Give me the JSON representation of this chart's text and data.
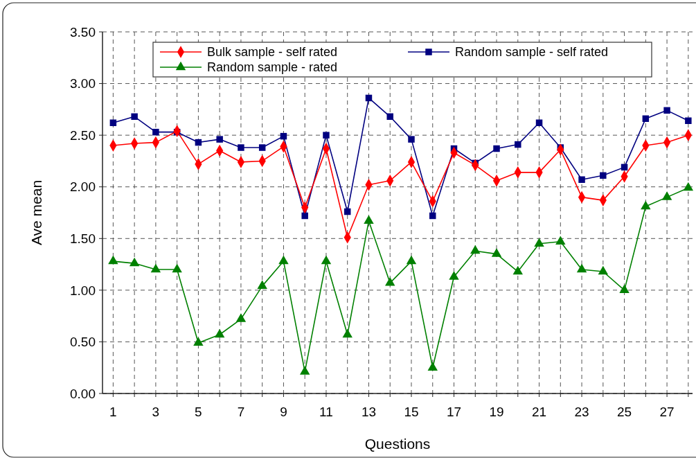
{
  "chart_data": {
    "type": "line",
    "xlabel": "Questions",
    "ylabel": "Ave mean",
    "x": [
      1,
      2,
      3,
      4,
      5,
      6,
      7,
      8,
      9,
      10,
      11,
      12,
      13,
      14,
      15,
      16,
      17,
      18,
      19,
      20,
      21,
      22,
      23,
      24,
      25,
      26,
      27,
      28
    ],
    "xlim": [
      0.5,
      28.2
    ],
    "xticks": [
      1,
      {
        "value": 2,
        "label": null
      },
      3,
      {
        "value": 4,
        "label": null
      },
      5,
      {
        "value": 6,
        "label": null
      },
      7,
      {
        "value": 8,
        "label": null
      },
      9,
      {
        "value": 10,
        "label": null
      },
      11,
      {
        "value": 12,
        "label": null
      },
      13,
      {
        "value": 14,
        "label": null
      },
      15,
      {
        "value": 16,
        "label": null
      },
      17,
      {
        "value": 18,
        "label": null
      },
      19,
      {
        "value": 20,
        "label": null
      },
      21,
      {
        "value": 22,
        "label": null
      },
      23,
      {
        "value": 24,
        "label": null
      },
      25,
      {
        "value": 26,
        "label": null
      },
      27,
      {
        "value": 28,
        "label": null
      }
    ],
    "ylim": [
      0,
      3.5
    ],
    "yticks": [
      {
        "value": 0,
        "label": "0.00"
      },
      {
        "value": 0.5,
        "label": "0.50"
      },
      {
        "value": 1,
        "label": "1.00"
      },
      {
        "value": 1.5,
        "label": "1.50"
      },
      {
        "value": 2,
        "label": "2.00"
      },
      {
        "value": 2.5,
        "label": "2.50"
      },
      {
        "value": 3,
        "label": "3.00"
      },
      {
        "value": 3.5,
        "label": "3.50"
      }
    ],
    "grid": true,
    "legend": "top",
    "line_style": "solid",
    "series": [
      {
        "name": "Bulk sample - self rated",
        "color": "#ff0000",
        "marker": "diamond",
        "values": [
          2.4,
          2.42,
          2.43,
          2.54,
          2.22,
          2.35,
          2.24,
          2.25,
          2.39,
          1.8,
          2.37,
          1.51,
          2.02,
          2.06,
          2.24,
          1.86,
          2.33,
          2.21,
          2.06,
          2.14,
          2.14,
          2.36,
          1.9,
          1.87,
          2.1,
          2.4,
          2.43,
          2.5
        ]
      },
      {
        "name": "Random sample - self rated",
        "color": "#000080",
        "marker": "square",
        "values": [
          2.62,
          2.68,
          2.53,
          2.53,
          2.43,
          2.46,
          2.38,
          2.38,
          2.49,
          1.72,
          2.5,
          1.76,
          2.86,
          2.68,
          2.46,
          1.72,
          2.37,
          2.23,
          2.37,
          2.41,
          2.62,
          2.38,
          2.07,
          2.11,
          2.19,
          2.66,
          2.74,
          2.64
        ]
      },
      {
        "name": "Random sample - rated",
        "color": "#008000",
        "marker": "triangle",
        "values": [
          1.28,
          1.26,
          1.2,
          1.2,
          0.49,
          0.57,
          0.72,
          1.04,
          1.28,
          0.21,
          1.28,
          0.57,
          1.67,
          1.07,
          1.28,
          0.25,
          1.13,
          1.38,
          1.35,
          1.18,
          1.45,
          1.47,
          1.2,
          1.18,
          1.0,
          1.81,
          1.9,
          1.99
        ]
      }
    ]
  }
}
